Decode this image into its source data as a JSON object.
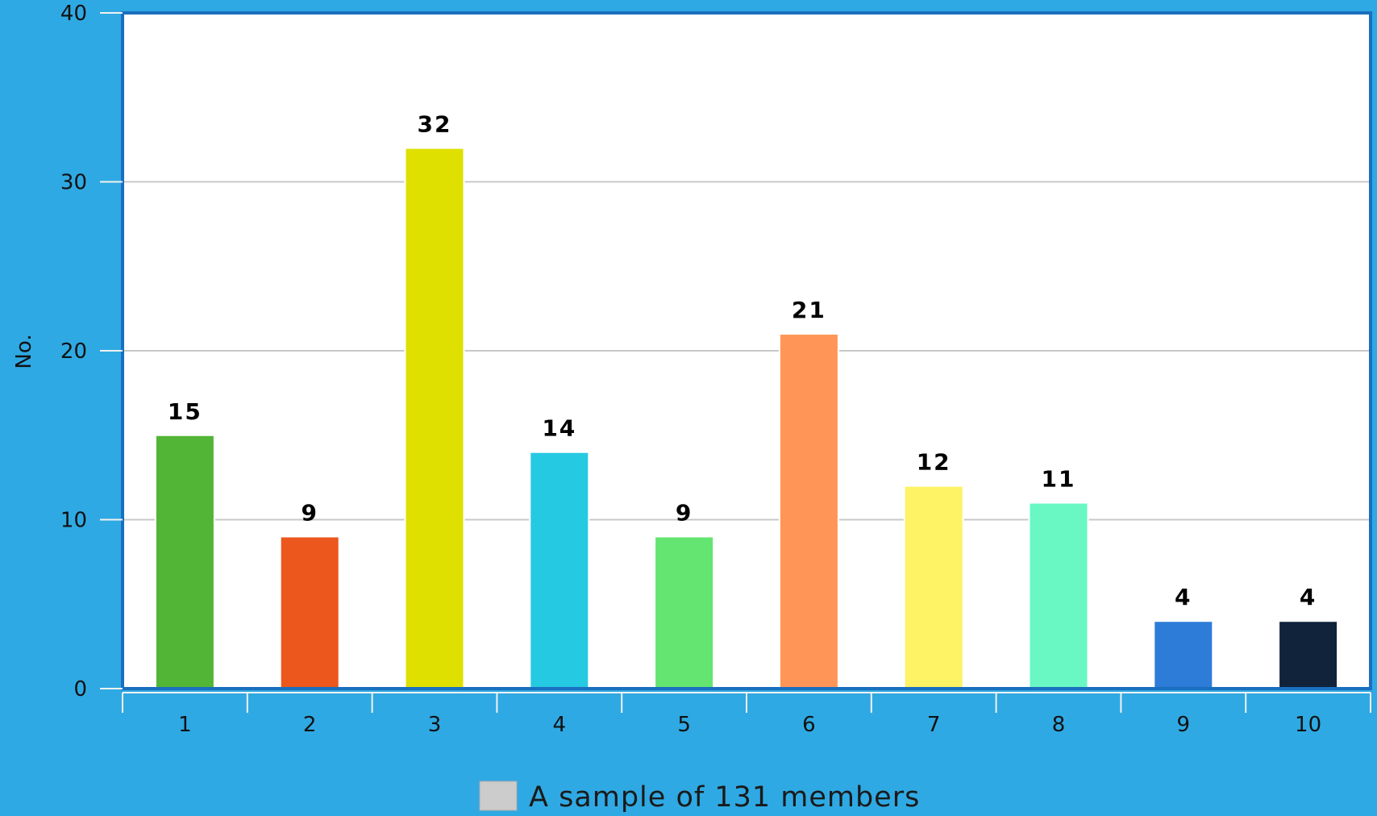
{
  "chart_data": {
    "type": "bar",
    "categories": [
      "1",
      "2",
      "3",
      "4",
      "5",
      "6",
      "7",
      "8",
      "9",
      "10"
    ],
    "series": [
      {
        "name": "A sample of 131 members",
        "values": [
          15,
          9,
          32,
          14,
          9,
          21,
          12,
          11,
          4,
          4
        ]
      }
    ],
    "value_labels": [
      "15",
      "9",
      "32",
      "14",
      "9",
      "21",
      "12",
      "11",
      "4",
      "4"
    ],
    "bar_colors": [
      "#52b535",
      "#ec571d",
      "#dfe000",
      "#26c9e2",
      "#64e571",
      "#ff9657",
      "#fef265",
      "#69f8c3",
      "#2d7dd8",
      "#10233a"
    ],
    "ylabel": "No.",
    "xlabel": "",
    "ylim": [
      0,
      40
    ],
    "yticks": [
      "0",
      "10",
      "20",
      "30",
      "40"
    ],
    "grid": true,
    "legend": {
      "position": "bottom-center",
      "label": "A sample of 131 members",
      "swatch_color": "#cccccc"
    },
    "colors": {
      "background": "#2fa9e3",
      "plot_background": "#ffffff",
      "plot_border": "#1a6fbf",
      "gridline": "#c8c8c8"
    }
  }
}
